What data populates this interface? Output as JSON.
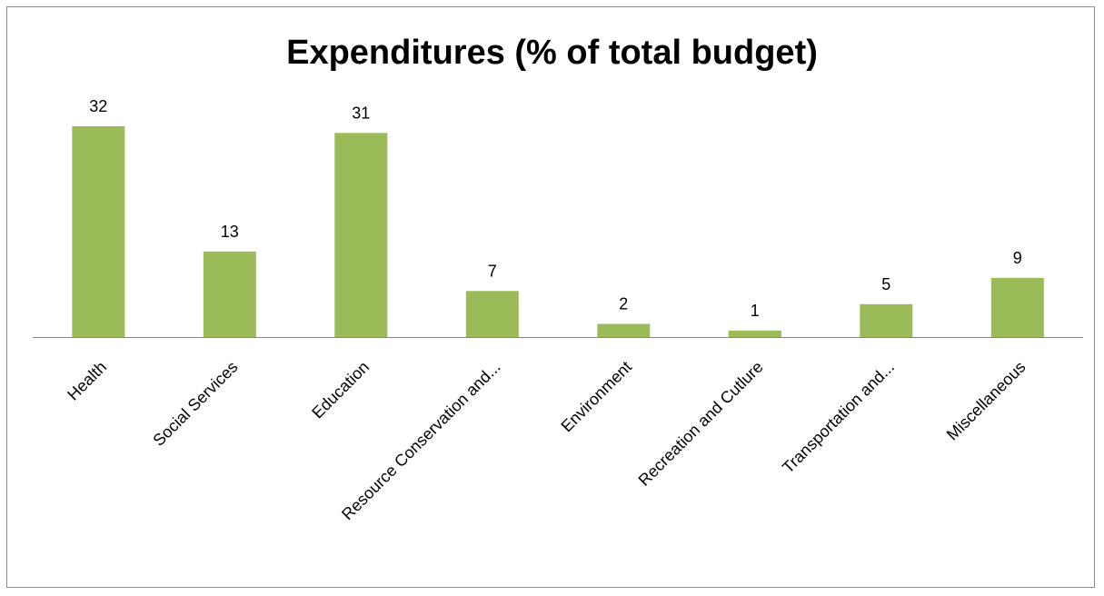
{
  "chart_data": {
    "type": "bar",
    "title": "Expenditures (% of total budget)",
    "categories": [
      "Health",
      "Social Services",
      "Education",
      "Resource Conservation and...",
      "Environment",
      "Recreation and Cutlure",
      "Transportation and...",
      "Miscellaneous"
    ],
    "values": [
      32,
      13,
      31,
      7,
      2,
      1,
      5,
      9
    ],
    "xlabel": "",
    "ylabel": "",
    "ylim": [
      0,
      32
    ],
    "grid": false,
    "legend": "none",
    "data_labels": true,
    "bar_color": "#9bbb59",
    "axis_color": "#868686"
  }
}
